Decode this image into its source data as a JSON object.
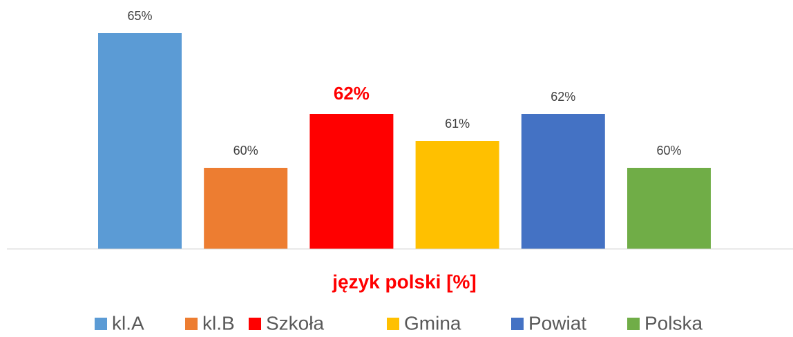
{
  "chart_data": {
    "type": "bar",
    "categories": [
      "język polski [%]"
    ],
    "category_color": "#ff0000",
    "ylim": [
      57,
      66
    ],
    "legend": "bottom",
    "series": [
      {
        "name": "kl.A",
        "color": "#5b9bd5",
        "values": [
          65
        ],
        "value_labels": [
          "65%"
        ]
      },
      {
        "name": "kl.B",
        "color": "#ed7d31",
        "values": [
          60
        ],
        "value_labels": [
          "60%"
        ]
      },
      {
        "name": "Szkoła",
        "color": "#ff0000",
        "values": [
          62
        ],
        "value_labels": [
          "62%"
        ],
        "label_color": "#ff0000"
      },
      {
        "name": "Gmina",
        "color": "#ffc000",
        "values": [
          61
        ],
        "value_labels": [
          "61%"
        ]
      },
      {
        "name": "Powiat",
        "color": "#4472c4",
        "values": [
          62
        ],
        "value_labels": [
          "62%"
        ]
      },
      {
        "name": "Polska",
        "color": "#70ad47",
        "values": [
          60
        ],
        "value_labels": [
          "60%"
        ]
      }
    ]
  }
}
